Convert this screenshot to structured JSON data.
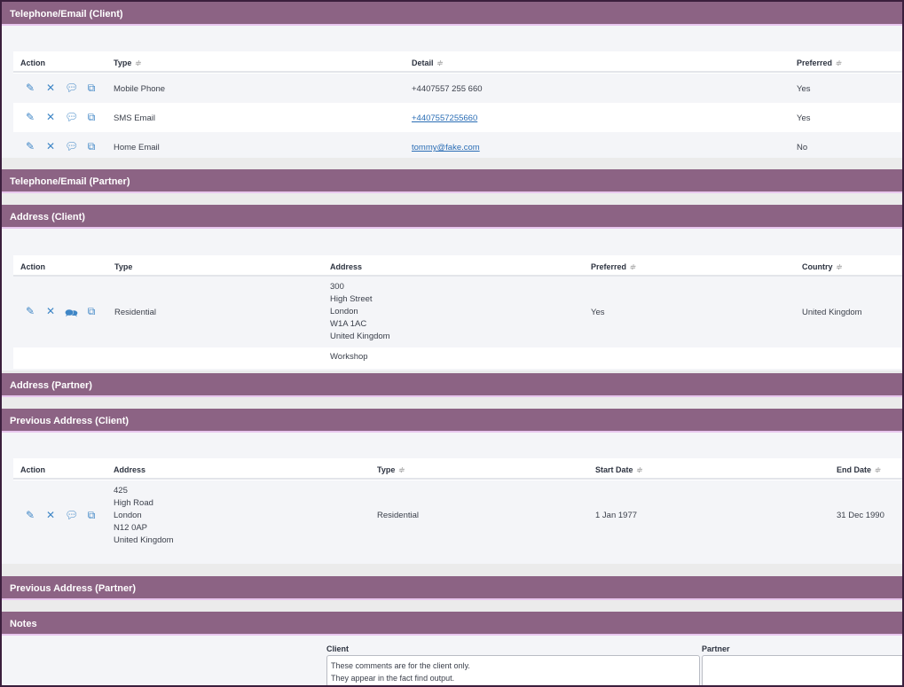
{
  "sections": {
    "tel_client": "Telephone/Email (Client)",
    "tel_partner": "Telephone/Email (Partner)",
    "addr_client": "Address (Client)",
    "addr_partner": "Address (Partner)",
    "prev_client": "Previous Address (Client)",
    "prev_partner": "Previous Address (Partner)",
    "notes": "Notes"
  },
  "icons": {
    "edit": "edit-icon",
    "delete": "close-icon",
    "comment": "comment-icon",
    "copy": "copy-icon",
    "sort": "sort-icon"
  },
  "tel_table": {
    "headers": [
      "Action",
      "Type",
      "Detail",
      "Preferred"
    ],
    "rows": [
      {
        "type": "Mobile Phone",
        "detail": "+4407557 255 660",
        "preferred": "Yes"
      },
      {
        "type": "SMS Email",
        "detail": "+4407557255660",
        "preferred": "Yes"
      },
      {
        "type": "Home Email",
        "detail": "tommy@fake.com",
        "preferred": "No"
      }
    ]
  },
  "addr_table": {
    "headers": [
      "Action",
      "Type",
      "Address",
      "Preferred",
      "Country"
    ],
    "rows": [
      {
        "type": "Residential",
        "address": [
          "300",
          "High Street",
          "London",
          "W1A 1AC",
          "United Kingdom"
        ],
        "preferred": "Yes",
        "country": "United Kingdom"
      },
      {
        "address_partial": "Workshop"
      }
    ]
  },
  "prev_table": {
    "headers": [
      "Action",
      "Address",
      "Type",
      "Start Date",
      "End Date"
    ],
    "rows": [
      {
        "address": [
          "425",
          "High Road",
          "London",
          "N12 0AP",
          "United Kingdom"
        ],
        "type": "Residential",
        "start": "1 Jan 1977",
        "end": "31 Dec 1990"
      }
    ]
  },
  "notes": {
    "client_label": "Client",
    "partner_label": "Partner",
    "client_text": [
      "These comments are for the client only.",
      "They appear in the fact find output."
    ],
    "partner_text": ""
  },
  "colors": {
    "header": "#8c6384",
    "link": "#2a6db5",
    "icon": "#3f86c6"
  }
}
